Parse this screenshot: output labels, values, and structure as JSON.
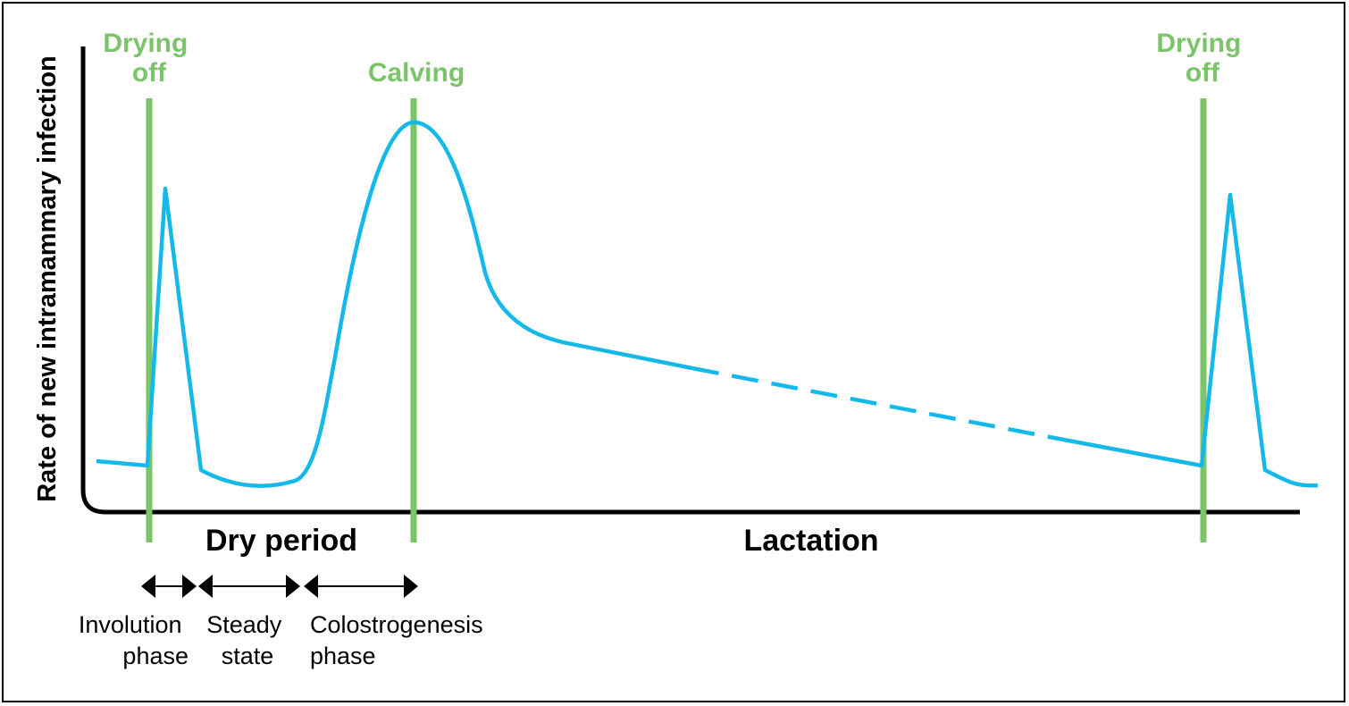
{
  "title": "",
  "y_axis_label": "Rate of new intramammary infection",
  "markers": {
    "drying_off_1": [
      "Drying",
      "off"
    ],
    "calving": "Calving",
    "drying_off_2": [
      "Drying",
      "off"
    ]
  },
  "periods": {
    "dry_period": "Dry period",
    "lactation": "Lactation"
  },
  "phases": {
    "involution": [
      "Involution",
      "phase"
    ],
    "steady": [
      "Steady",
      "state"
    ],
    "colostrogenesis": [
      "Colostrogenesis",
      "phase"
    ]
  },
  "colors": {
    "curve": "#14b9ea",
    "marker": "#7bc46a",
    "axis": "#000000"
  }
}
